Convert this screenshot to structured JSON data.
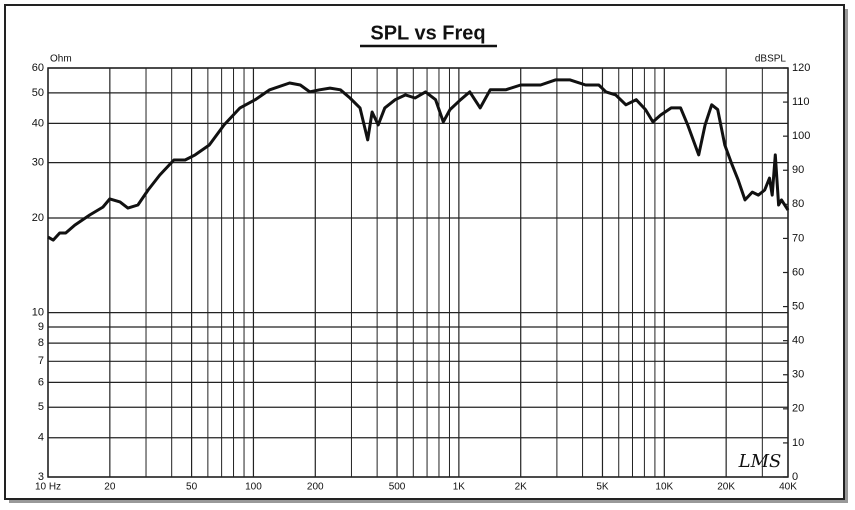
{
  "chart_data": {
    "type": "line",
    "title": "SPL vs Freq",
    "ylabel": "Ohm",
    "y2label": "dBSPL",
    "watermark": "LMS",
    "xlog": true,
    "ylog": true,
    "grid": true,
    "xlim": [
      10,
      40000
    ],
    "ylim": [
      3,
      60
    ],
    "y2lim": [
      0,
      120
    ],
    "xticks": [
      {
        "value": 10,
        "label": "10 Hz"
      },
      20,
      50,
      100,
      200,
      500,
      {
        "value": 1000,
        "label": "1K"
      },
      {
        "value": 2000,
        "label": "2K"
      },
      {
        "value": 5000,
        "label": "5K"
      },
      {
        "value": 10000,
        "label": "10K"
      },
      {
        "value": 20000,
        "label": "20K"
      },
      {
        "value": 40000,
        "label": "40K"
      }
    ],
    "xminor_ticks": [
      30,
      40,
      60,
      70,
      80,
      90,
      300,
      400,
      600,
      700,
      800,
      900,
      3000,
      4000,
      6000,
      7000,
      8000,
      9000,
      30000
    ],
    "yticks": [
      3,
      4,
      5,
      6,
      7,
      8,
      9,
      10,
      20,
      30,
      40,
      50,
      60
    ],
    "y2ticks": [
      0,
      10,
      20,
      30,
      40,
      50,
      60,
      70,
      80,
      90,
      100,
      110,
      120
    ],
    "x": [
      10,
      10.6,
      11.4,
      12.2,
      13.5,
      16,
      18.5,
      20,
      22.4,
      24.5,
      27.4,
      30.7,
      35,
      41,
      46.5,
      52,
      61,
      72,
      86,
      102,
      120,
      150,
      169,
      188,
      210,
      236,
      265,
      295,
      330,
      360,
      378,
      405,
      436,
      490,
      550,
      612,
      688,
      770,
      840,
      905,
      1020,
      1130,
      1270,
      1420,
      1690,
      2000,
      2500,
      2950,
      3480,
      4140,
      4800,
      5200,
      5800,
      6500,
      7300,
      8100,
      8800,
      9600,
      10800,
      12000,
      13000,
      14700,
      15800,
      17000,
      18200,
      19700,
      21400,
      22900,
      24700,
      26800,
      28700,
      30800,
      32500,
      33500,
      34700,
      36000,
      37200,
      40000
    ],
    "series": [
      {
        "color": "#111111",
        "axis": "y2",
        "values": [
          70.4,
          69.5,
          71.6,
          71.6,
          73.9,
          76.9,
          79.2,
          81.6,
          80.7,
          78.9,
          79.8,
          84.2,
          88.6,
          93,
          93,
          94.5,
          97.4,
          103.3,
          108.3,
          110.7,
          113.6,
          115.6,
          115,
          113,
          113.6,
          114.1,
          113.6,
          111.2,
          108.3,
          98.9,
          107.1,
          103.3,
          108.3,
          110.7,
          112.1,
          111.2,
          113,
          110.7,
          104.2,
          107.8,
          110.7,
          113,
          108.3,
          113.6,
          113.6,
          115,
          115,
          116.5,
          116.5,
          115,
          115,
          113,
          112.1,
          109.2,
          110.7,
          107.8,
          104.2,
          106.2,
          108.3,
          108.3,
          103.3,
          94.5,
          103.3,
          109.2,
          107.8,
          97.4,
          91.5,
          87.1,
          81.3,
          83.6,
          82.7,
          84.2,
          87.7,
          82.7,
          94.5,
          79.8,
          81.3,
          78.3
        ]
      }
    ]
  }
}
